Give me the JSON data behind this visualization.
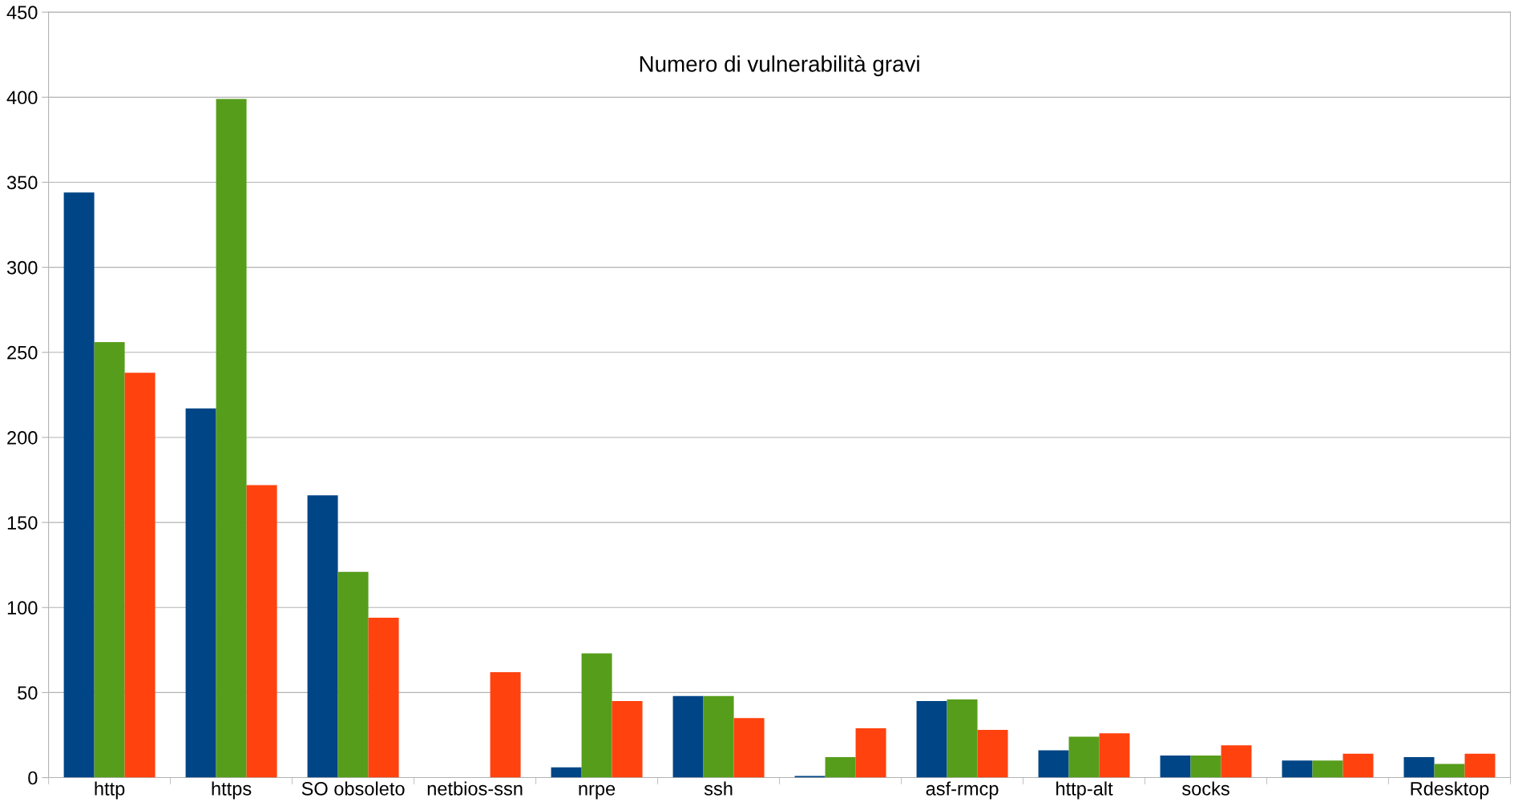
{
  "chart_data": {
    "type": "bar",
    "title": "Numero di vulnerabilità gravi",
    "categories": [
      "http",
      "https",
      "SO obsoleto",
      "netbios-ssn",
      "nrpe",
      "ssh",
      null,
      "asf-rmcp",
      "http-alt",
      "socks",
      null,
      "Rdesktop"
    ],
    "series": [
      {
        "color": "#004586",
        "values": [
          344,
          217,
          166,
          0,
          6,
          48,
          1,
          45,
          16,
          13,
          10,
          12
        ]
      },
      {
        "color": "#579d1c",
        "values": [
          256,
          399,
          121,
          0,
          73,
          48,
          12,
          46,
          24,
          13,
          10,
          8
        ]
      },
      {
        "color": "#ff420e",
        "values": [
          238,
          172,
          94,
          62,
          45,
          35,
          29,
          28,
          26,
          19,
          14,
          14
        ]
      }
    ],
    "ylim": [
      0,
      450
    ],
    "yticks": [
      0,
      50,
      100,
      150,
      200,
      250,
      300,
      350,
      400,
      450
    ],
    "grid": "y",
    "legend": false
  }
}
